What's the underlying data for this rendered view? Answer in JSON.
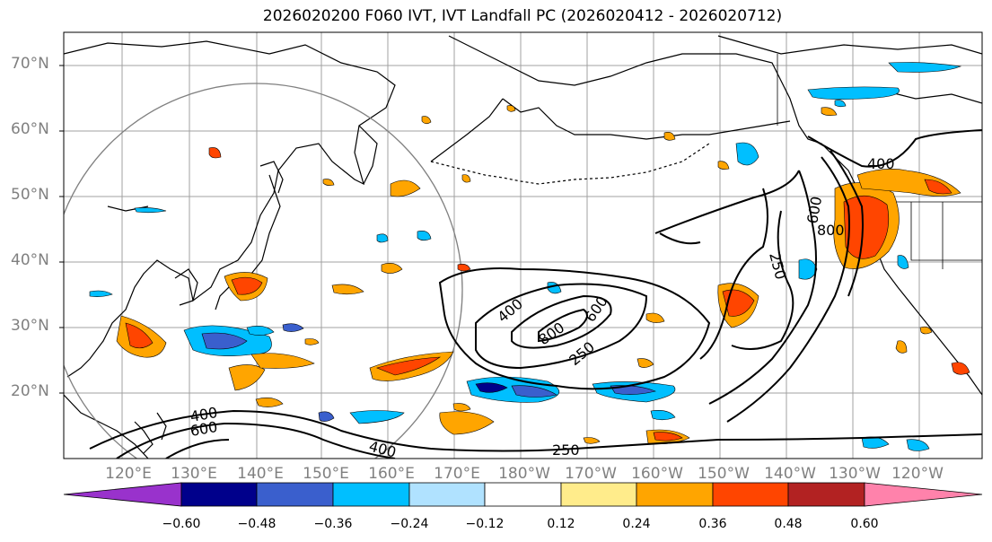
{
  "title": "2026020200 F060 IVT, IVT Landfall PC (2026020412 - 2026020712)",
  "lat_labels": [
    "70°N",
    "60°N",
    "50°N",
    "40°N",
    "30°N",
    "20°N"
  ],
  "lon_labels": [
    "120°E",
    "130°E",
    "140°E",
    "150°E",
    "160°E",
    "170°E",
    "180°W",
    "170°W",
    "160°W",
    "150°W",
    "140°W",
    "130°W",
    "120°W"
  ],
  "contour_labels": [
    "400",
    "600",
    "800",
    "400",
    "600",
    "800",
    "250",
    "400",
    "600",
    "400",
    "250",
    "250"
  ],
  "colorbar": {
    "colors": [
      "#9932cc",
      "#00008b",
      "#3a5fcd",
      "#00bfff",
      "#b0e2ff",
      "#ffffff",
      "#ffec8b",
      "#ffa500",
      "#ff4500",
      "#b22222",
      "#ff82ab"
    ],
    "tick_labels": [
      "−0.60",
      "−0.48",
      "−0.36",
      "−0.24",
      "−0.12",
      "0.12",
      "0.24",
      "0.36",
      "0.48",
      "0.60"
    ]
  }
}
